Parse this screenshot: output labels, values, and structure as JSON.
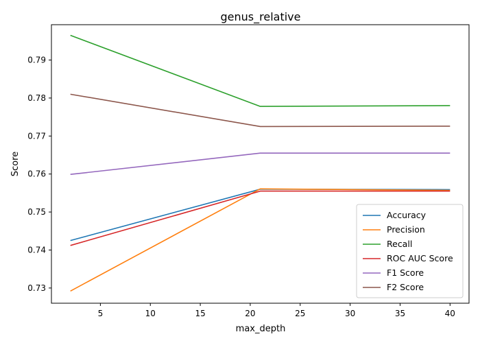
{
  "chart_data": {
    "type": "line",
    "title": "genus_relative",
    "xlabel": "max_depth",
    "ylabel": "Score",
    "x": [
      2,
      21,
      40
    ],
    "xlim": [
      0.1,
      41.9
    ],
    "ylim": [
      0.726,
      0.7993
    ],
    "xticks": [
      5,
      10,
      15,
      20,
      25,
      30,
      35,
      40
    ],
    "yticks": [
      0.73,
      0.74,
      0.75,
      0.76,
      0.77,
      0.78,
      0.79
    ],
    "grid": false,
    "legend_position": "lower-right",
    "series": [
      {
        "name": "Accuracy",
        "color": "#1f77b4",
        "values": [
          0.7425,
          0.756,
          0.7559
        ]
      },
      {
        "name": "Precision",
        "color": "#ff7f0e",
        "values": [
          0.7292,
          0.7561,
          0.7557
        ]
      },
      {
        "name": "Recall",
        "color": "#2ca02c",
        "values": [
          0.7965,
          0.7778,
          0.778
        ]
      },
      {
        "name": "ROC AUC Score",
        "color": "#d62728",
        "values": [
          0.7412,
          0.7555,
          0.7555
        ]
      },
      {
        "name": "F1 Score",
        "color": "#9467bd",
        "values": [
          0.7599,
          0.7655,
          0.7655
        ]
      },
      {
        "name": "F2 Score",
        "color": "#8c564b",
        "values": [
          0.781,
          0.7725,
          0.7726
        ]
      }
    ]
  }
}
